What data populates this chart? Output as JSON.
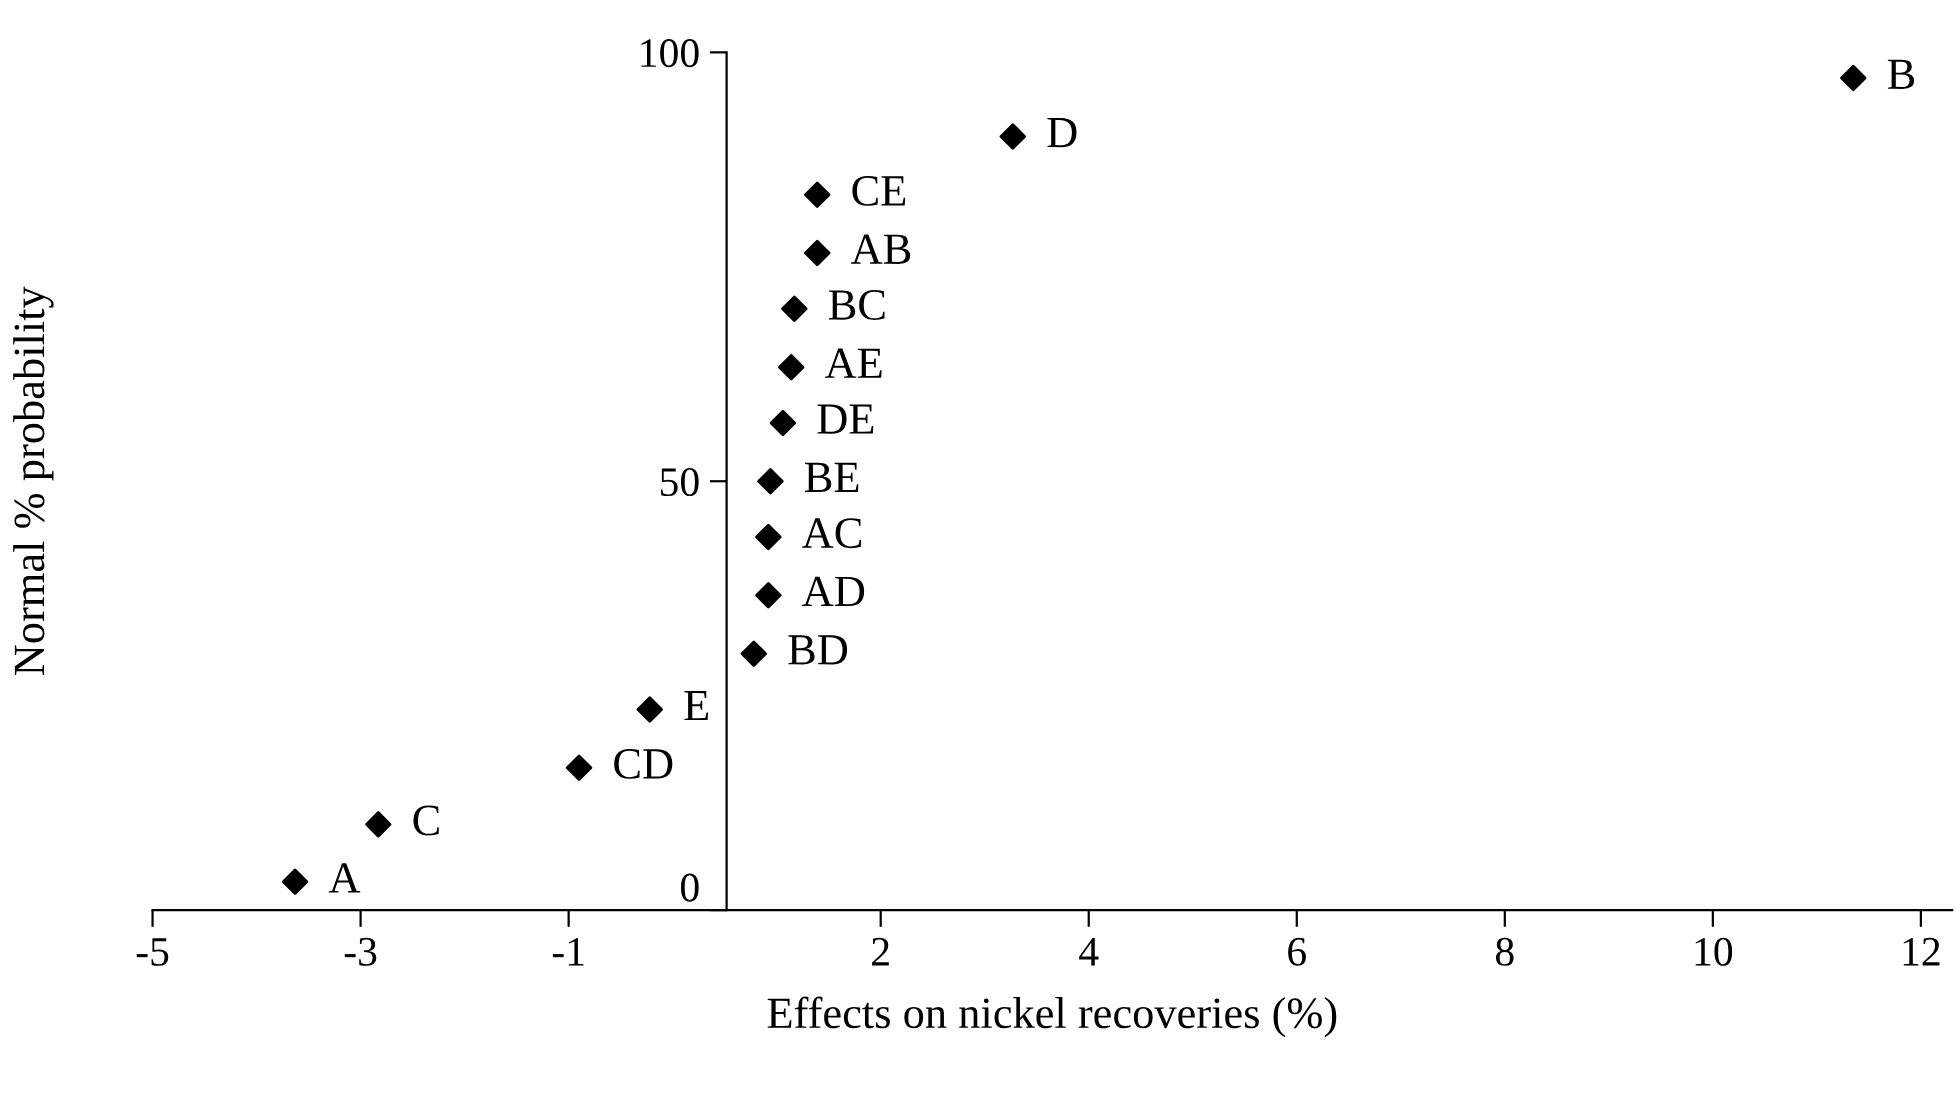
{
  "chart_data": {
    "type": "scatter",
    "xlabel": "Effects on nickel recoveries (%)",
    "ylabel": "Normal % probability",
    "x": [
      -3.63,
      -2.83,
      -0.9,
      -0.22,
      0.78,
      0.92,
      0.92,
      0.94,
      1.06,
      1.14,
      1.17,
      1.39,
      1.39,
      3.27,
      11.35
    ],
    "series": [
      {
        "color": "#000000",
        "values": [
          3.3,
          10.0,
          16.6,
          23.4,
          29.9,
          36.7,
          43.5,
          50.0,
          56.8,
          63.3,
          70.1,
          76.6,
          83.4,
          90.2,
          97.0
        ]
      }
    ],
    "annotations": [
      {
        "text": "A",
        "x": -3.63,
        "y": 3.3
      },
      {
        "text": "C",
        "x": -2.83,
        "y": 10.0
      },
      {
        "text": "CD",
        "x": -0.9,
        "y": 16.6
      },
      {
        "text": "E",
        "x": -0.22,
        "y": 23.4
      },
      {
        "text": "BD",
        "x": 0.78,
        "y": 29.9
      },
      {
        "text": "AD",
        "x": 0.92,
        "y": 36.7
      },
      {
        "text": "AC",
        "x": 0.92,
        "y": 43.5
      },
      {
        "text": "BE",
        "x": 0.94,
        "y": 50.0
      },
      {
        "text": "DE",
        "x": 1.06,
        "y": 56.8
      },
      {
        "text": "AE",
        "x": 1.14,
        "y": 63.3
      },
      {
        "text": "BC",
        "x": 1.17,
        "y": 70.1
      },
      {
        "text": "AB",
        "x": 1.39,
        "y": 76.6
      },
      {
        "text": "CE",
        "x": 1.39,
        "y": 83.4
      },
      {
        "text": "D",
        "x": 3.27,
        "y": 90.2
      },
      {
        "text": "B",
        "x": 11.35,
        "y": 97.0
      }
    ],
    "xlim": [
      -5,
      12.3
    ],
    "ylim": [
      0,
      100
    ],
    "xticks": [
      -5,
      -3,
      -1,
      2,
      4,
      6,
      8,
      10,
      12
    ],
    "yticks": [
      0,
      50,
      100
    ],
    "marker": "diamond",
    "grid": false,
    "legend": false
  }
}
